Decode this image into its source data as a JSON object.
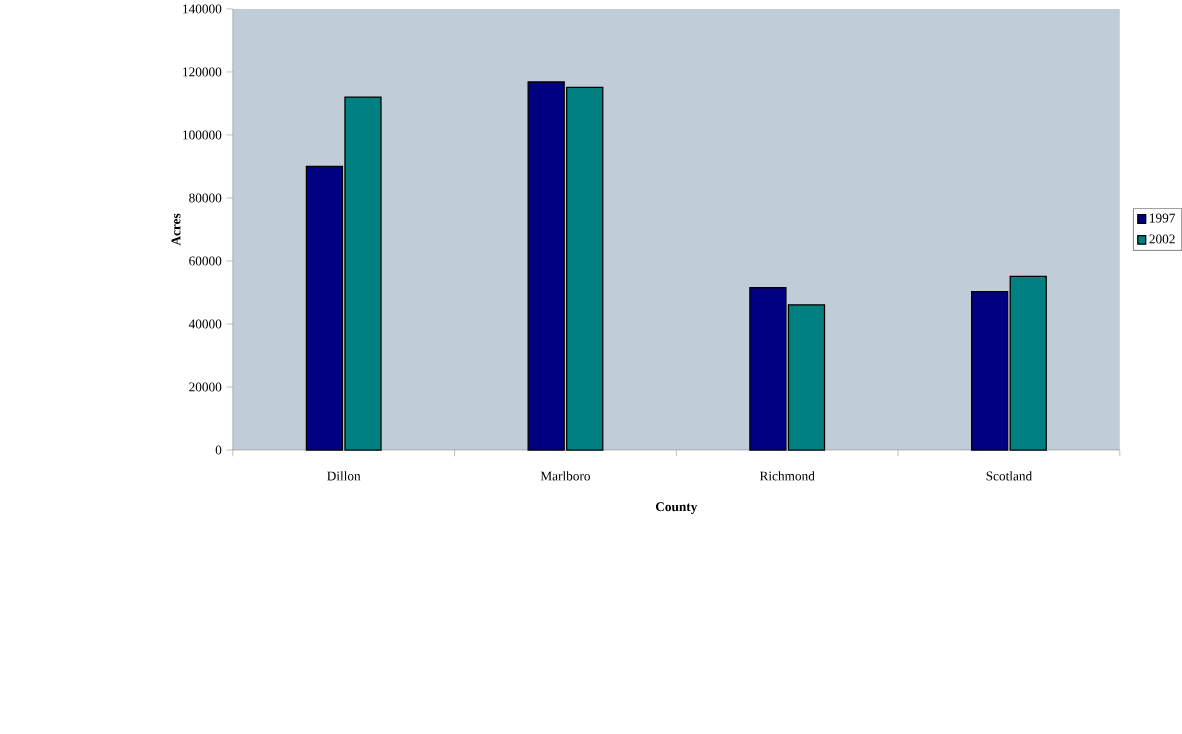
{
  "chart_data": {
    "type": "bar",
    "xlabel": "County",
    "ylabel": "Acres",
    "categories": [
      "Dillon",
      "Marlboro",
      "Richmond",
      "Scotland"
    ],
    "series": [
      {
        "name": "1997",
        "color": "#000080",
        "values": [
          90000,
          116800,
          51500,
          50300
        ]
      },
      {
        "name": "2002",
        "color": "#008080",
        "values": [
          112000,
          115100,
          46100,
          55100
        ]
      }
    ],
    "ylim": [
      0,
      140000
    ],
    "yticks": [
      0,
      20000,
      40000,
      60000,
      80000,
      100000,
      120000,
      140000
    ],
    "legend": "right",
    "grid": false
  }
}
